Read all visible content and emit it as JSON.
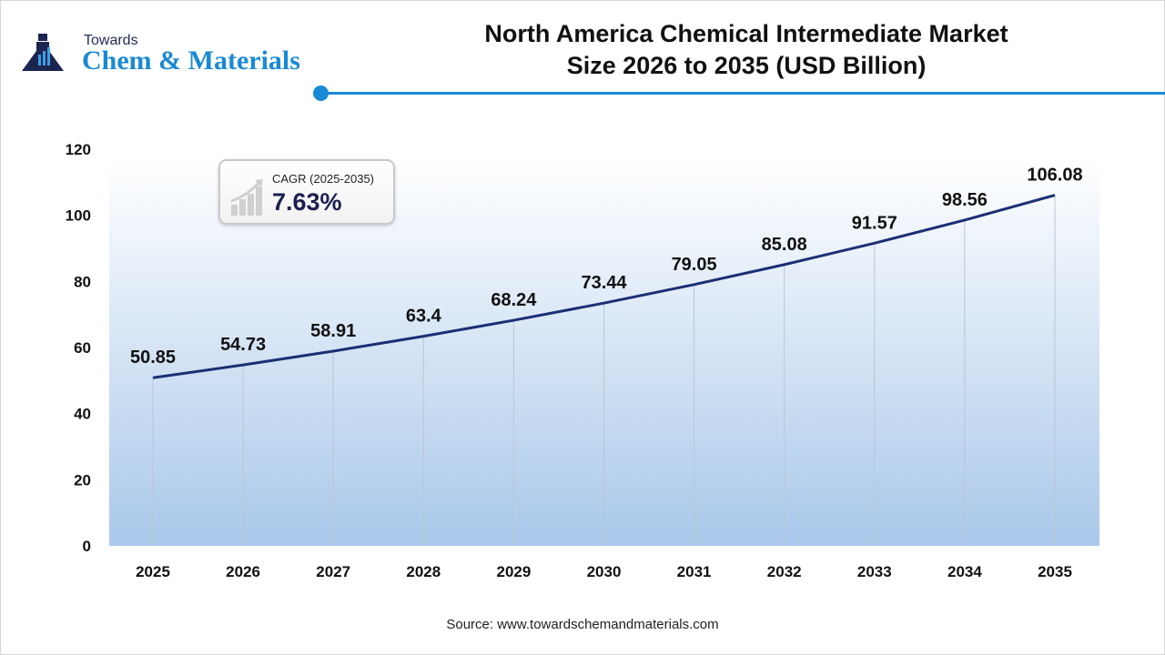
{
  "logo": {
    "top": "Towards",
    "main": "Chem & Materials"
  },
  "title_line1": "North America Chemical Intermediate Market",
  "title_line2": "Size 2026 to 2035 (USD Billion)",
  "cagr": {
    "label": "CAGR (2025-2035)",
    "value": "7.63%",
    "icon": "growth-chart-icon"
  },
  "source": "Source: www.towardschemandmaterials.com",
  "colors": {
    "accent": "#1a8ad4",
    "line": "#1b2f73",
    "area_top": "#ffffff",
    "area_bottom": "#a9c8ea"
  },
  "chart_data": {
    "type": "line",
    "title": "North America Chemical Intermediate Market Size 2026 to 2035 (USD Billion)",
    "categories": [
      "2025",
      "2026",
      "2027",
      "2028",
      "2029",
      "2030",
      "2031",
      "2032",
      "2033",
      "2034",
      "2035"
    ],
    "values": [
      50.85,
      54.73,
      58.91,
      63.4,
      68.24,
      73.44,
      79.05,
      85.08,
      91.57,
      98.56,
      106.08
    ],
    "data_labels": [
      "50.85",
      "54.73",
      "58.91",
      "63.4",
      "68.24",
      "73.44",
      "79.05",
      "85.08",
      "91.57",
      "98.56",
      "106.08"
    ],
    "yticks": [
      "0",
      "20",
      "40",
      "60",
      "80",
      "100",
      "120"
    ],
    "ylim": [
      0,
      120
    ],
    "grid": "vertical lines at each category",
    "legend": "none"
  }
}
